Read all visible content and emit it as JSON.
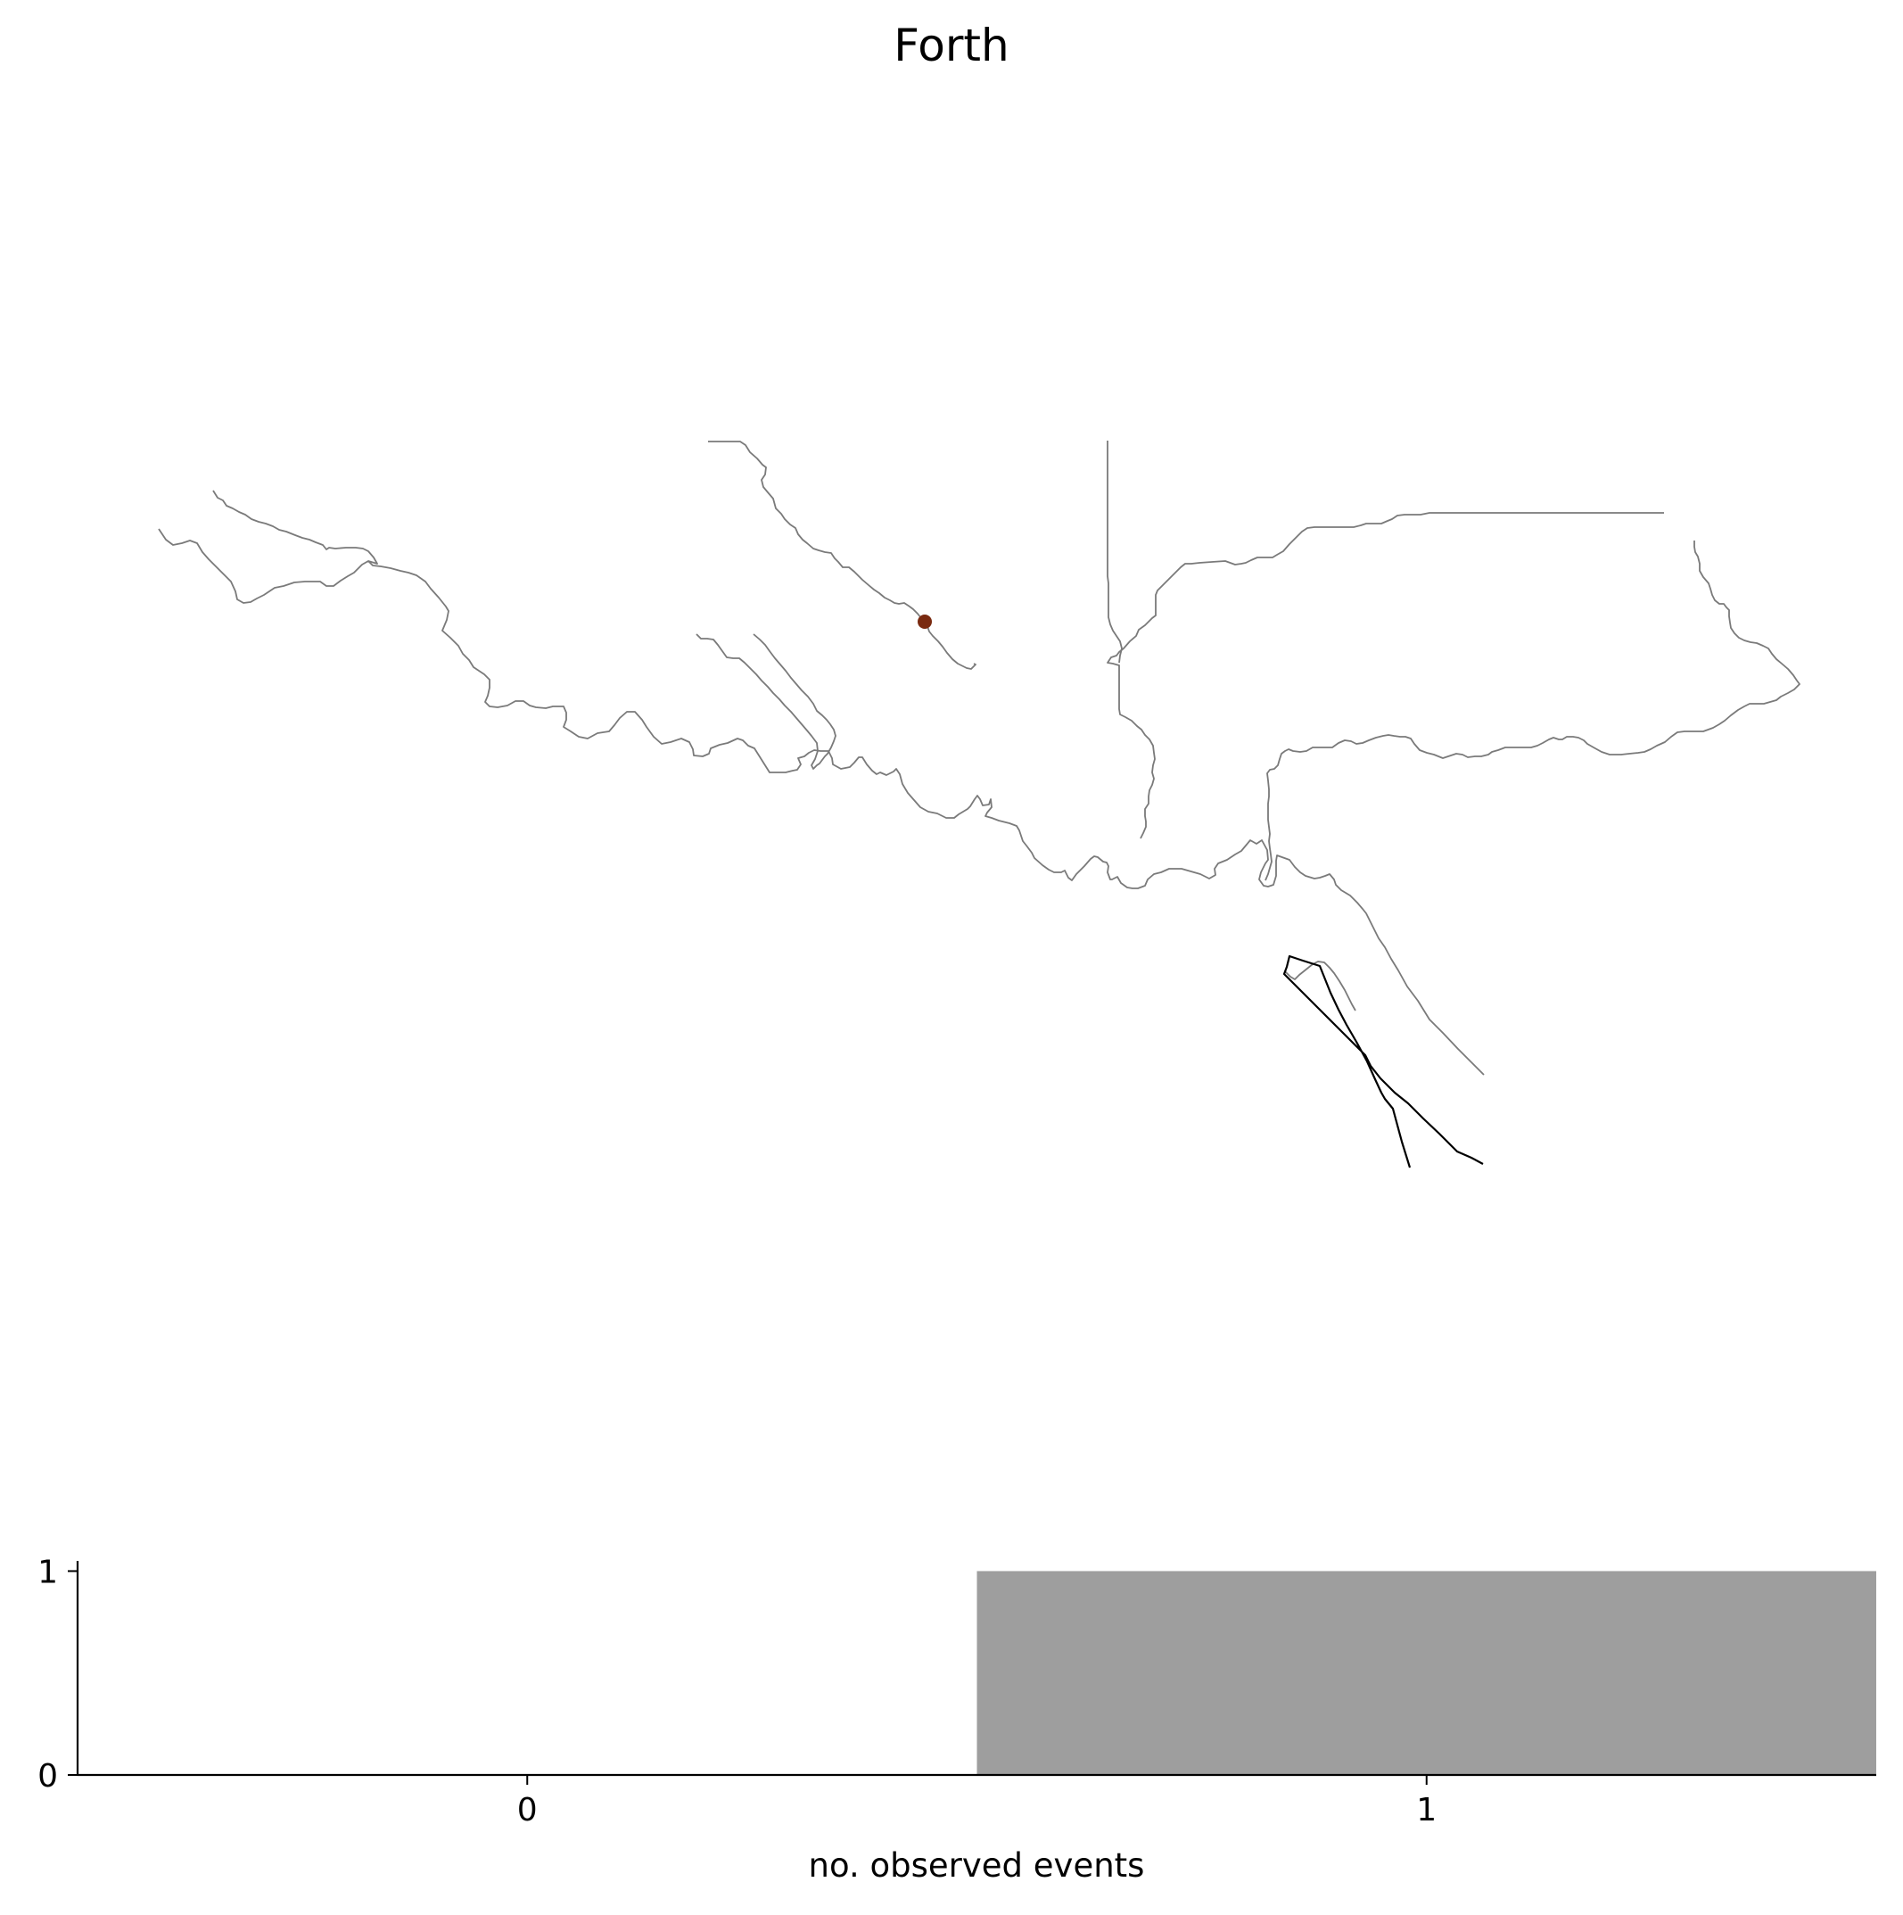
{
  "title": "Forth",
  "colors": {
    "river": "#7a7a7a",
    "estuary_outline": "#000000",
    "station_marker": "#7a2a10",
    "bar_fill": "#9e9e9e"
  },
  "map": {
    "layers": [
      "river network",
      "estuary outline",
      "station marker"
    ]
  },
  "chart_data": {
    "type": "bar",
    "categories": [
      "0",
      "1"
    ],
    "values": [
      0,
      1
    ],
    "xlabel": "no. observed events",
    "ylabel": "",
    "x_ticks": [
      "0",
      "1"
    ],
    "y_ticks": [
      "0",
      "1"
    ],
    "xlim": [
      -0.5,
      1.5
    ],
    "ylim": [
      0,
      1.05
    ],
    "bar_width": 1.0,
    "grid": false
  }
}
